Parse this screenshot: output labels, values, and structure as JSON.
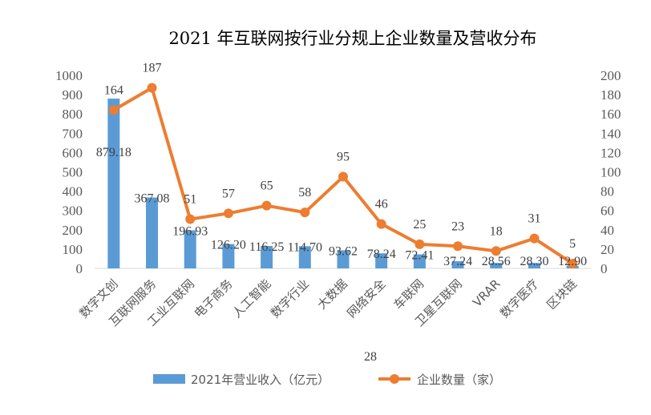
{
  "chart_data": {
    "type": "bar+line",
    "title": "2021 年互联网按行业分规上企业数量及营收分布",
    "categories": [
      "数字文创",
      "互联网服务",
      "工业互联网",
      "电子商务",
      "人工智能",
      "数字行业",
      "大数据",
      "网络安全",
      "车联网",
      "卫星互联网",
      "VRAR",
      "数字医疗",
      "区块链"
    ],
    "series": [
      {
        "name": "2021年营业收入（亿元）",
        "type": "bar",
        "axis": "left",
        "color": "#5B9BD5",
        "values": [
          879.18,
          367.08,
          196.93,
          126.2,
          116.25,
          114.7,
          93.62,
          78.24,
          72.41,
          37.24,
          28.56,
          28.3,
          12.9
        ],
        "labels": [
          "879.18",
          "367.08",
          "196.93",
          "126.20",
          "116.25",
          "114.70",
          "93.62",
          "78.24",
          "72.41",
          "37.24",
          "28.56",
          "28.30",
          "12.90"
        ]
      },
      {
        "name": "企业数量（家）",
        "type": "line",
        "axis": "right",
        "color": "#ED7D31",
        "values": [
          164,
          187,
          51,
          57,
          65,
          58,
          95,
          46,
          25,
          23,
          18,
          31,
          5
        ],
        "labels": [
          "164",
          "187",
          "51",
          "57",
          "65",
          "58",
          "95",
          "46",
          "25",
          "23",
          "18",
          "31",
          "5"
        ]
      }
    ],
    "left_axis": {
      "min": 0,
      "max": 1000,
      "step": 100,
      "ticks": [
        "0",
        "100",
        "200",
        "300",
        "400",
        "500",
        "600",
        "700",
        "800",
        "900",
        "1000"
      ]
    },
    "right_axis": {
      "min": 0,
      "max": 200,
      "step": 20,
      "ticks": [
        "0",
        "20",
        "40",
        "60",
        "80",
        "100",
        "120",
        "140",
        "160",
        "180",
        "200"
      ]
    },
    "annotation": "28",
    "grid": false,
    "legend_position": "bottom"
  }
}
